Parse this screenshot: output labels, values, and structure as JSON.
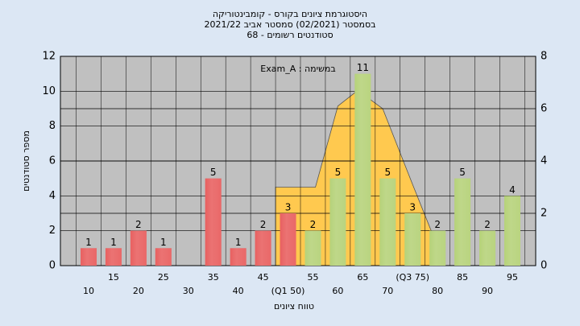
{
  "chart_data": {
    "type": "histogram",
    "title": [
      "היסטוגרמת ציונים בקורס - קומבינטוריקה",
      "בסמסטר  (02/2021)  סמסטר אביב 2021/22",
      "סטודנטים רשומים - 68"
    ],
    "annotation": "במשימה : Exam_A",
    "x_label": "טווח ציונים",
    "y_label": "מספר סטודנטים",
    "categories": [
      "10",
      "15",
      "20",
      "25",
      "30",
      "35",
      "40",
      "45",
      "(Q1 50)",
      "55",
      "60",
      "65",
      "70",
      "(Q3 75)",
      "80",
      "85",
      "90",
      "95"
    ],
    "values": [
      1,
      1,
      2,
      1,
      0,
      5,
      1,
      2,
      3,
      2,
      5,
      11,
      5,
      3,
      2,
      5,
      2,
      4
    ],
    "bar_colors": [
      "#e02828",
      "#e02828",
      "#e02828",
      "#e02828",
      "#e02828",
      "#e02828",
      "#e02828",
      "#e02828",
      "#e02828",
      "#9cc24a",
      "#9cc24a",
      "#9cc24a",
      "#9cc24a",
      "#9cc24a",
      "#9cc24a",
      "#9cc24a",
      "#9cc24a",
      "#9cc24a"
    ],
    "curve": {
      "color": "#ffc94f",
      "axis": "y2",
      "x": [
        47.5,
        55.5,
        60,
        64,
        69,
        75,
        79
      ],
      "values": [
        3,
        3,
        6.1,
        6.7,
        6,
        3.1,
        1.2
      ]
    },
    "ylim": [
      0,
      12
    ],
    "yticks": [
      0,
      2,
      4,
      6,
      8,
      10,
      12
    ],
    "y2lim": [
      0,
      8
    ],
    "y2ticks": [
      0,
      2,
      4,
      6,
      8
    ],
    "grid": true
  }
}
